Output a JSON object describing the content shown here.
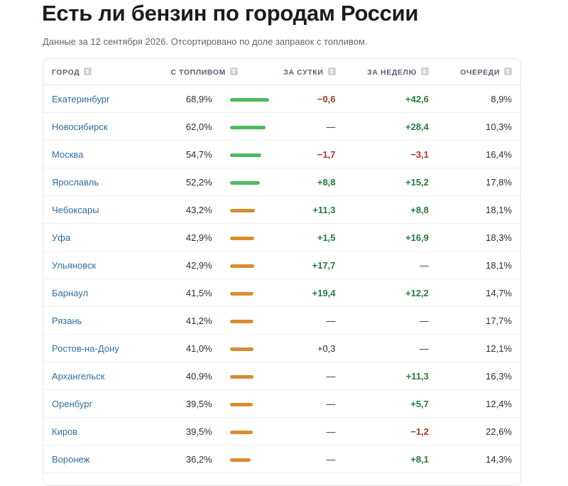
{
  "page": {
    "title": "Есть ли бензин по городам России",
    "subtitle": "Данные за 12 сентября 2026. Отсортировано по доле заправок с топливом."
  },
  "colors": {
    "bar_high": "#4cbb5f",
    "bar_mid": "#d98c2f",
    "positive": "#247a3d",
    "negative": "#a3382a",
    "link": "#2f6ea3"
  },
  "table": {
    "headers": {
      "city": "Город",
      "with_fuel": "С топливом",
      "day": "За сутки",
      "week": "За неделю",
      "queues": "Очереди"
    },
    "sort_icon": "sort-icon",
    "rows": [
      {
        "city": "Екатеринбург",
        "pct": "68,9%",
        "level": 0.689,
        "day": "−0,6",
        "week": "+42,6",
        "queue": "8,9%"
      },
      {
        "city": "Новосибирск",
        "pct": "62,0%",
        "level": 0.62,
        "day": "—",
        "week": "+28,4",
        "queue": "10,3%"
      },
      {
        "city": "Москва",
        "pct": "54,7%",
        "level": 0.547,
        "day": "−1,7",
        "week": "−3,1",
        "queue": "16,4%"
      },
      {
        "city": "Ярославль",
        "pct": "52,2%",
        "level": 0.522,
        "day": "+8,8",
        "week": "+15,2",
        "queue": "17,8%"
      },
      {
        "city": "Чебоксары",
        "pct": "43,2%",
        "level": 0.432,
        "day": "+11,3",
        "week": "+8,8",
        "queue": "18,1%"
      },
      {
        "city": "Уфа",
        "pct": "42,9%",
        "level": 0.429,
        "day": "+1,5",
        "week": "+16,9",
        "queue": "18,3%"
      },
      {
        "city": "Ульяновск",
        "pct": "42,9%",
        "level": 0.429,
        "day": "+17,7",
        "week": "—",
        "queue": "18,1%"
      },
      {
        "city": "Барнаул",
        "pct": "41,5%",
        "level": 0.415,
        "day": "+19,4",
        "week": "+12,2",
        "queue": "14,7%"
      },
      {
        "city": "Рязань",
        "pct": "41,2%",
        "level": 0.412,
        "day": "—",
        "week": "—",
        "queue": "17,7%"
      },
      {
        "city": "Ростов-на-Дону",
        "pct": "41,0%",
        "level": 0.41,
        "day": "+0,3",
        "week": "—",
        "queue": "12,1%"
      },
      {
        "city": "Архангельск",
        "pct": "40,9%",
        "level": 0.409,
        "day": "—",
        "week": "+11,3",
        "queue": "16,3%"
      },
      {
        "city": "Оренбург",
        "pct": "39,5%",
        "level": 0.395,
        "day": "—",
        "week": "+5,7",
        "queue": "12,4%"
      },
      {
        "city": "Киров",
        "pct": "39,5%",
        "level": 0.395,
        "day": "—",
        "week": "−1,2",
        "queue": "22,6%"
      },
      {
        "city": "Воронеж",
        "pct": "36,2%",
        "level": 0.362,
        "day": "—",
        "week": "+8,1",
        "queue": "14,3%"
      }
    ]
  }
}
